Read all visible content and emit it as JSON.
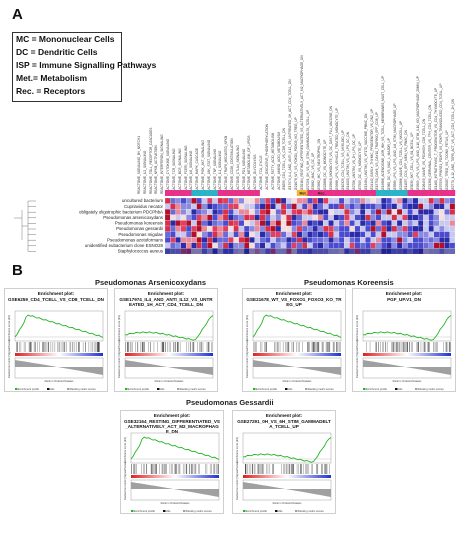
{
  "panels": {
    "a_letter": "A",
    "b_letter": "B"
  },
  "legend": [
    "MC = Mononuclear Cells",
    "DC = Dendritic Cells",
    "ISP = Immune Signalling Pathways",
    "Met.= Metabolism",
    "Rec. = Receptors"
  ],
  "heatmap": {
    "rows": [
      "uncultured bacterium",
      "Cupriavidus necator",
      "obligately oligotrophic bacterium PDCPhbA",
      "Pseudomonas arsenicoxydans",
      "Pseudomonas koreensis",
      "Pseudomonas gessardii",
      "Pseudomonas migulae",
      "Pseudomonas azotoformans",
      "unidentified eubacterium clone ESNO28",
      "Staphylococcus aureus"
    ],
    "group_labels": [
      "Met.",
      "Rec."
    ],
    "group_colors": {
      "met": "#f2b733",
      "rec": "#2bb3c7",
      "pink": "#e8318a"
    },
    "columns": [
      "REACTOME_SIGNALING_BY_NOTCH1",
      "REACTOME_IL2_SIGNALING",
      "REACTOME_TOLL_RECEPTOR_CASCADES",
      "REACTOME_NFKB_ACTIVATION",
      "REACTOME_INTERFERON_SIGNALING",
      "REACTOME_CYTOKINE_SIGNALING",
      "REACTOME_TCR_SIGNALING",
      "REACTOME_BCR_SIGNALING",
      "REACTOME_FCERI_SIGNALING",
      "REACTOME_IL6_SIGNALING",
      "REACTOME_MAPK_CASCADE",
      "REACTOME_PI3K_AKT_SIGNALING",
      "REACTOME_JAK_STAT_SIGNALING",
      "REACTOME_TNF_SIGNALING",
      "REACTOME_IL1_SIGNALING",
      "REACTOME_TRAF6_MEDIATED_NFKB",
      "REACTOME_CD28_COSTIMULATION",
      "REACTOME_CTLA4_SIGNALING",
      "REACTOME_PD1_SIGNALING",
      "REACTOME_METABOLISM_OF_LIPIDS",
      "REACTOME_GLYCOLYSIS",
      "REACTOME_TCA_CYCLE",
      "REACTOME_OXIDATIVE_PHOSPHORYLATION",
      "REACTOME_FATTY_ACID_METABOLISM",
      "REACTOME_AMINO_ACID_METABOLISM",
      "GSE6259_CD4_TCELL_VS_CD8_TCELL_DN",
      "GSE17974_IL4_AND_ANTI_IL12_VS_UNTREATED_1H_ACT_CD4_TCELL_DN",
      "GSE21678_WT_VS_FOXO1_FOXO3_KO_TREG_UP",
      "GSE32164_RESTING_DIFFERENTIATED_VS_ALTERNATIVELY_ACT_M2_MACROPHAGE_DN",
      "GSE27291_0H_VS_6H_STIM_GAMMADELTA_TCELL_UP",
      "GSE3982_MAC_VS_DC_UP",
      "GSE3982_MC_VS_NEUTROPHIL_DN",
      "GSE22886_DC_VS_MONOCYTE_UP",
      "GSE29618_MONOCYTE_VS_DC_DAY7_FLU_VACCINE_DN",
      "GSE9988_LPS_VS_VEHICLE_TREATED_MONOCYTE_UP",
      "GSE10325_CD4_TCELL_VS_MYELOID_UP",
      "GSE14000_UNSTIM_VS_4H_LPS_DC_DN",
      "GSE2706_UNSTIM_VS_2H_LPS_DC_UP",
      "GSE7509_DC_VS_MONOCYTE_UP",
      "GSE13484_UNSTIM_VS_YF17D_VACCINE_PBMC_DN",
      "GSE24142_EARLY_THYMIC_PROGENITOR_VS_DN2_UP",
      "GSE15750_DAY6_VS_DAY10_TRAF6KO_EFF_CD8_UP",
      "GSE19888_ADENOSINE_A3R_INH_VS_TCELL_MEMBRANES_MAST_CELL_UP",
      "GSE360_DC_VS_MAC_L_MAJOR_UP",
      "GSE5589_LPS_VS_LPS_AND_IL6_STIM_MACROPHAGE_UP",
      "GSE22886_NAIVE_CD4_TCELL_VS_NKCELL_UP",
      "GSE11057_CD4_EFF_MEM_VS_PBMC_DN",
      "GSE3039_NKT_CELL_VS_B1_BCELL_UP",
      "GSE9509_LPS_VS_LPS_AND_IL10_STIM_IL10_KO_MACROPHAGE_20MIN_UP",
      "GSE26495_NAIVE_VS_PD1HIGH_CD8_TCELL_DN",
      "GSE21380_GERMINAL_CENTER_VS_TFH_CD4_TCELL_DN",
      "GSE1460_INTRATHYMIC_T_PROGENITOR_VS_CD4_THYMOCYTE_UP",
      "GSE37533_PPARG1_FOXP3_VS_FOXP3_TRANSDUCED_CD4_TCELL_UP",
      "GSE25087_TREG_VS_TCONV_FETUS_UP",
      "GSE2770_IL12_AND_TGFB_ACT_VS_ACT_CD4_TCELL_2H_DN"
    ]
  },
  "panel_b": {
    "groups": [
      {
        "title": "Pseudomonas Arsenicoxydans"
      },
      {
        "title": "Pseudomonas Koreensis"
      },
      {
        "title": "Pseudomonas Gessardii"
      }
    ],
    "plots": [
      {
        "heading": "Enrichment plot:",
        "gene_set": "GSE6259_CD4_TCELL_VS_CD8_TCELL_DN",
        "curve": "decline"
      },
      {
        "heading": "Enrichment plot:",
        "gene_set": "GSE17974_IL4_AND_ANTI_IL12_VS_UNTREATED_1H_ACT_CD4_TCELL_DN",
        "curve": "dip"
      },
      {
        "heading": "Enrichment plot:",
        "gene_set": "GSE21678_WT_VS_FOXO1_FOXO3_KO_TREG_UP",
        "curve": "decline"
      },
      {
        "heading": "Enrichment plot:",
        "gene_set": "PGF_UP.V1_DN",
        "curve": "dip"
      },
      {
        "heading": "Enrichment plot:",
        "gene_set": "GSE32164_RESTING_DIFFERENTIATED_VS_ALTERNATIVELY_ACT_M2_MACROPHAGE_DN",
        "curve": "decline"
      },
      {
        "heading": "Enrichment plot:",
        "gene_set": "GSE27291_0H_VS_6H_STIM_GAMMADELTA_TCELL_UP",
        "curve": "dip"
      }
    ],
    "axis_small": {
      "y_top": "Enrichment score (ES)",
      "y_bottom": "Ranked list metric (Signal2Noise)",
      "x": "Rank in Ordered Dataset",
      "legend": [
        "Enrichment profile",
        "Hits",
        "Ranking metric scores"
      ]
    }
  }
}
